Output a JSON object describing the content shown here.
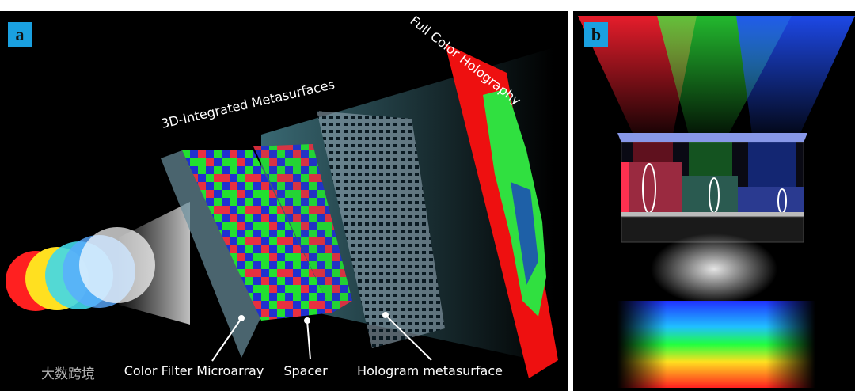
{
  "panel_a": {
    "label": "a",
    "title": "3D-Integrated Metasurfaces",
    "screen_label": "Full Color Holography",
    "callouts": [
      "Color Filter Microarray",
      "Spacer",
      "Hologram metasurface"
    ]
  },
  "panel_b": {
    "label": "b"
  },
  "watermark": "大数跨境"
}
